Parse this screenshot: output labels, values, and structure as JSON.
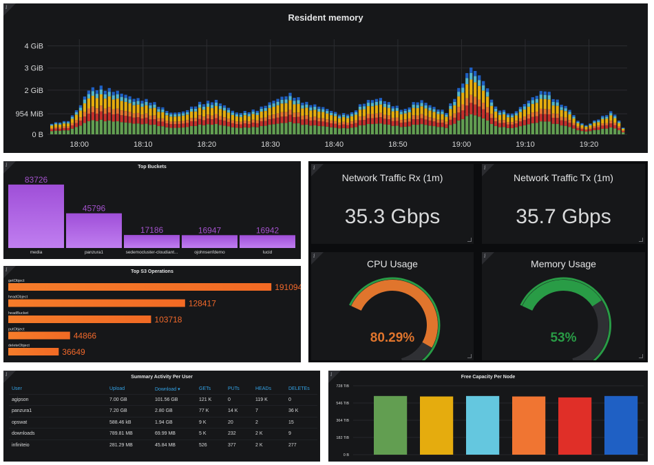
{
  "resident_memory": {
    "title": "Resident memory",
    "chart_data": {
      "type": "bar",
      "stacked": true,
      "title": "Resident memory",
      "y_tick_labels": [
        "0 B",
        "954 MiB",
        "2 GiB",
        "3 GiB",
        "4 GiB"
      ],
      "ylim_gib": [
        0,
        4.3
      ],
      "x_tick_labels": [
        "18:00",
        "18:10",
        "18:20",
        "18:30",
        "18:40",
        "18:50",
        "19:00",
        "19:10",
        "19:20"
      ],
      "x_range": [
        "17:55",
        "19:26"
      ],
      "grid": true,
      "bar_count": 140,
      "series_colors": [
        "#629e51",
        "#c4302b",
        "#e5732f",
        "#e5ac0e",
        "#55b5c9",
        "#1f60c4"
      ],
      "total_profile_gib": [
        [
          0,
          0.5
        ],
        [
          4,
          0.6
        ],
        [
          7,
          1.3
        ],
        [
          9,
          2.0
        ],
        [
          12,
          2.1
        ],
        [
          16,
          1.9
        ],
        [
          20,
          1.6
        ],
        [
          24,
          1.5
        ],
        [
          29,
          0.95
        ],
        [
          32,
          1.0
        ],
        [
          36,
          1.4
        ],
        [
          40,
          1.5
        ],
        [
          45,
          0.95
        ],
        [
          50,
          1.1
        ],
        [
          54,
          1.5
        ],
        [
          58,
          1.8
        ],
        [
          62,
          1.4
        ],
        [
          66,
          1.2
        ],
        [
          70,
          0.9
        ],
        [
          73,
          0.95
        ],
        [
          75,
          1.3
        ],
        [
          77,
          1.5
        ],
        [
          80,
          1.6
        ],
        [
          83,
          1.3
        ],
        [
          86,
          1.1
        ],
        [
          88,
          1.4
        ],
        [
          90,
          1.5
        ],
        [
          93,
          1.2
        ],
        [
          96,
          1.0
        ],
        [
          99,
          2.0
        ],
        [
          102,
          3.0
        ],
        [
          105,
          2.4
        ],
        [
          108,
          1.2
        ],
        [
          112,
          0.9
        ],
        [
          116,
          1.5
        ],
        [
          120,
          2.0
        ],
        [
          123,
          1.5
        ],
        [
          126,
          1.1
        ],
        [
          128,
          0.6
        ],
        [
          130,
          0.4
        ],
        [
          134,
          0.8
        ],
        [
          136,
          1.0
        ],
        [
          137,
          0.9
        ],
        [
          139,
          0.3
        ]
      ]
    }
  },
  "top_buckets": {
    "title": "Top Buckets",
    "chart_data": {
      "type": "bar",
      "title": "Top Buckets",
      "categories": [
        "media",
        "panzura1",
        "sedemocluster-cloudiant...",
        "ojohnsenfdemo",
        "lucid"
      ],
      "values": [
        83726,
        45796,
        17186,
        16947,
        16942
      ],
      "ylim": [
        0,
        100000
      ],
      "color": "#a352cc"
    }
  },
  "top_s3_ops": {
    "title": "Top S3 Operations",
    "chart_data": {
      "type": "bar",
      "orientation": "horizontal",
      "title": "Top S3 Operations",
      "categories": [
        "getObject",
        "headObject",
        "headBucket",
        "putObject",
        "deleteObject"
      ],
      "values": [
        191094,
        128417,
        103718,
        44866,
        36649
      ],
      "xlim": [
        0,
        200000
      ],
      "color": "#f2692b"
    }
  },
  "network_rx": {
    "title": "Network Traffic Rx (1m)",
    "value": "35.3 Gbps"
  },
  "network_tx": {
    "title": "Network Traffic Tx (1m)",
    "value": "35.7 Gbps"
  },
  "cpu_usage": {
    "title": "CPU Usage",
    "value_text": "80.29%",
    "value": 80.29,
    "color": "#e0752d",
    "threshold_color": "#c4162a",
    "ok_color": "#299c46"
  },
  "memory_usage": {
    "title": "Memory Usage",
    "value_text": "53%",
    "value": 53,
    "color": "#299c46",
    "threshold_color": "#c4162a",
    "ok_color": "#299c46"
  },
  "summary": {
    "title": "Summary Activity Per User",
    "columns": [
      "User",
      "Upload",
      "Download ▾",
      "GETs",
      "PUTs",
      "HEADs",
      "DELETEs"
    ],
    "rows": [
      [
        "agipson",
        "7.00 GB",
        "101.56 GB",
        "121 K",
        "0",
        "119 K",
        "0"
      ],
      [
        "panzura1",
        "7.20 GB",
        "2.80 GB",
        "77 K",
        "14 K",
        "7",
        "36 K"
      ],
      [
        "opswat",
        "588.46 kB",
        "1.94 GB",
        "9 K",
        "20",
        "2",
        "15"
      ],
      [
        "downloads",
        "789.81 MB",
        "69.99 MB",
        "5 K",
        "232",
        "2 K",
        "9"
      ],
      [
        "infiniteio",
        "281.29 MB",
        "45.84 MB",
        "526",
        "377",
        "2 K",
        "277"
      ]
    ]
  },
  "free_capacity": {
    "title": "Free Capacity Per Node",
    "chart_data": {
      "type": "bar",
      "title": "Free Capacity Per Node",
      "y_tick_labels": [
        "0 B",
        "182 TiB",
        "364 TiB",
        "546 TiB",
        "728 TiB"
      ],
      "ylim": [
        0,
        728
      ],
      "values": [
        620,
        615,
        620,
        615,
        605,
        620
      ],
      "colors": [
        "#629e51",
        "#e5ac0e",
        "#64c7df",
        "#f07532",
        "#e02f28",
        "#1f60c4"
      ]
    }
  }
}
